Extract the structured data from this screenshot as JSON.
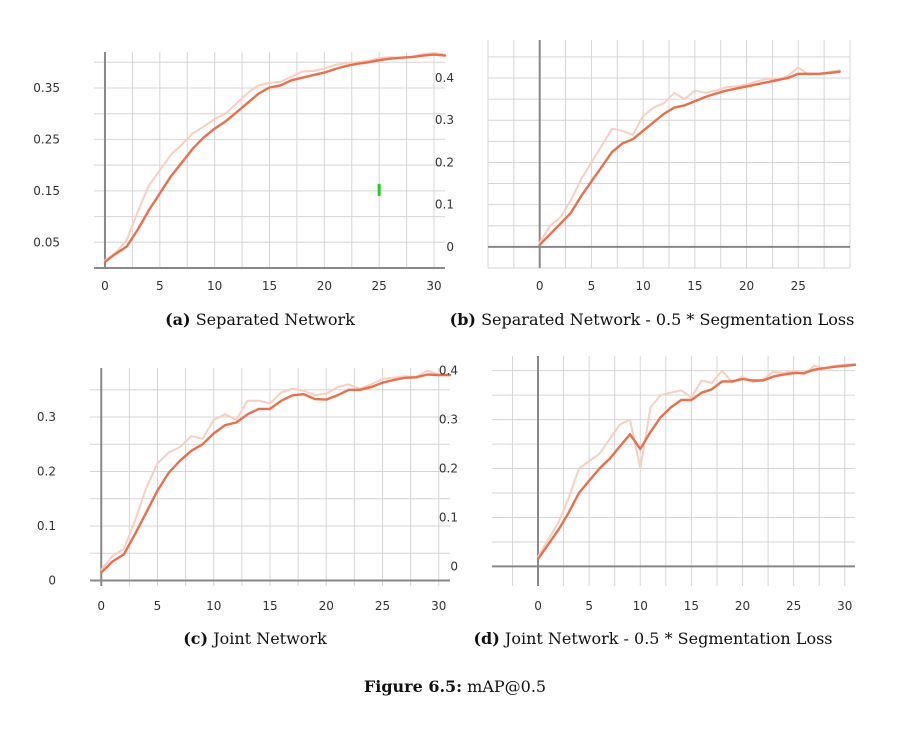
{
  "figure": {
    "label": "Figure 6.5:",
    "text": "mAP@0.5"
  },
  "colors": {
    "smoothed": "#e8704c",
    "raw": "#f8cfc1",
    "grid": "#d6d6d6",
    "axis": "#888888",
    "marker": "#22cc22"
  },
  "chart_data": [
    {
      "type": "line",
      "caption_label": "(a)",
      "caption_text": "Separated Network",
      "xlim": [
        -1,
        31
      ],
      "ylim": [
        0,
        0.42
      ],
      "x_ticks": [
        0,
        5,
        10,
        15,
        20,
        25,
        30
      ],
      "y_ticks": [
        0.05,
        0.15,
        0.25,
        0.35
      ],
      "marker": {
        "x": 25,
        "y": 0.152
      },
      "series": [
        {
          "role": "smoothed",
          "x": [
            0,
            1,
            2,
            3,
            4,
            5,
            6,
            7,
            8,
            9,
            10,
            11,
            12,
            13,
            14,
            15,
            16,
            17,
            18,
            19,
            20,
            21,
            22,
            23,
            24,
            25,
            26,
            27,
            28,
            29,
            30,
            31
          ],
          "values": [
            0.012,
            0.028,
            0.042,
            0.075,
            0.112,
            0.145,
            0.178,
            0.205,
            0.232,
            0.254,
            0.271,
            0.285,
            0.303,
            0.321,
            0.339,
            0.351,
            0.355,
            0.365,
            0.37,
            0.375,
            0.38,
            0.387,
            0.393,
            0.397,
            0.4,
            0.404,
            0.407,
            0.409,
            0.41,
            0.413,
            0.415,
            0.413
          ]
        },
        {
          "role": "raw",
          "x": [
            0,
            1,
            2,
            3,
            4,
            5,
            6,
            7,
            8,
            9,
            10,
            11,
            12,
            13,
            14,
            15,
            16,
            17,
            18,
            19,
            20,
            21,
            22,
            23,
            24,
            25,
            26,
            27,
            28,
            29,
            30,
            31
          ],
          "values": [
            0.015,
            0.03,
            0.055,
            0.11,
            0.16,
            0.19,
            0.22,
            0.24,
            0.262,
            0.275,
            0.29,
            0.3,
            0.32,
            0.34,
            0.355,
            0.36,
            0.362,
            0.372,
            0.382,
            0.383,
            0.388,
            0.395,
            0.398,
            0.4,
            0.403,
            0.408,
            0.41,
            0.409,
            0.411,
            0.416,
            0.418,
            0.415
          ]
        }
      ]
    },
    {
      "type": "line",
      "caption_label": "(b)",
      "caption_text": "Separated Network - 0.5 * Segmentation Loss",
      "xlim": [
        -5,
        30
      ],
      "ylim": [
        -0.05,
        0.49
      ],
      "x_ticks": [
        0,
        5,
        10,
        15,
        20,
        25
      ],
      "y_ticks": [
        0,
        0.1,
        0.2,
        0.3,
        0.4
      ],
      "y_tick_labels": [
        "0",
        "0.1",
        "0.2",
        "0.3",
        "0.4"
      ],
      "series": [
        {
          "role": "smoothed",
          "x": [
            0,
            1,
            2,
            3,
            4,
            5,
            6,
            7,
            8,
            9,
            10,
            11,
            12,
            13,
            14,
            15,
            16,
            17,
            18,
            19,
            20,
            21,
            22,
            23,
            24,
            25,
            26,
            27,
            28,
            29
          ],
          "values": [
            0.005,
            0.03,
            0.055,
            0.08,
            0.12,
            0.155,
            0.19,
            0.225,
            0.245,
            0.255,
            0.275,
            0.295,
            0.315,
            0.33,
            0.335,
            0.345,
            0.355,
            0.363,
            0.37,
            0.375,
            0.38,
            0.385,
            0.39,
            0.395,
            0.4,
            0.41,
            0.41,
            0.41,
            0.412,
            0.415
          ]
        },
        {
          "role": "raw",
          "x": [
            0,
            1,
            2,
            3,
            4,
            5,
            6,
            7,
            8,
            9,
            10,
            11,
            12,
            13,
            14,
            15,
            16,
            17,
            18,
            19,
            20,
            21,
            22,
            23,
            24,
            25,
            26,
            27,
            28,
            29
          ],
          "values": [
            0.01,
            0.05,
            0.07,
            0.11,
            0.16,
            0.2,
            0.24,
            0.28,
            0.275,
            0.265,
            0.31,
            0.33,
            0.34,
            0.365,
            0.35,
            0.37,
            0.365,
            0.37,
            0.378,
            0.38,
            0.385,
            0.392,
            0.398,
            0.397,
            0.405,
            0.425,
            0.408,
            0.41,
            0.415,
            0.418
          ]
        }
      ]
    },
    {
      "type": "line",
      "caption_label": "(c)",
      "caption_text": "Joint Network",
      "xlim": [
        -1,
        31
      ],
      "ylim": [
        -0.01,
        0.39
      ],
      "x_ticks": [
        0,
        5,
        10,
        15,
        20,
        25,
        30
      ],
      "y_ticks": [
        0,
        0.1,
        0.2,
        0.3
      ],
      "y_tick_labels": [
        "0",
        "0.1",
        "0.2",
        "0.3"
      ],
      "series": [
        {
          "role": "smoothed",
          "x": [
            0,
            1,
            2,
            3,
            4,
            5,
            6,
            7,
            8,
            9,
            10,
            11,
            12,
            13,
            14,
            15,
            16,
            17,
            18,
            19,
            20,
            21,
            22,
            23,
            24,
            25,
            26,
            27,
            28,
            29,
            30,
            31
          ],
          "values": [
            0.015,
            0.035,
            0.048,
            0.085,
            0.125,
            0.165,
            0.198,
            0.22,
            0.238,
            0.25,
            0.27,
            0.285,
            0.29,
            0.305,
            0.315,
            0.315,
            0.33,
            0.34,
            0.342,
            0.333,
            0.332,
            0.34,
            0.35,
            0.35,
            0.355,
            0.363,
            0.368,
            0.372,
            0.373,
            0.378,
            0.377,
            0.377
          ]
        },
        {
          "role": "raw",
          "x": [
            0,
            1,
            2,
            3,
            4,
            5,
            6,
            7,
            8,
            9,
            10,
            11,
            12,
            13,
            14,
            15,
            16,
            17,
            18,
            19,
            20,
            21,
            22,
            23,
            24,
            25,
            26,
            27,
            28,
            29,
            30,
            31
          ],
          "values": [
            0.02,
            0.045,
            0.058,
            0.11,
            0.17,
            0.215,
            0.235,
            0.245,
            0.265,
            0.26,
            0.295,
            0.305,
            0.295,
            0.33,
            0.33,
            0.325,
            0.345,
            0.352,
            0.348,
            0.34,
            0.343,
            0.355,
            0.36,
            0.352,
            0.36,
            0.37,
            0.372,
            0.375,
            0.374,
            0.385,
            0.378,
            0.378
          ]
        }
      ]
    },
    {
      "type": "line",
      "caption_label": "(d)",
      "caption_text": "Joint Network - 0.5 * Segmentation Loss",
      "xlim": [
        -4.5,
        31
      ],
      "ylim": [
        -0.04,
        0.43
      ],
      "x_ticks": [
        0,
        5,
        10,
        15,
        20,
        25,
        30
      ],
      "y_ticks": [
        0,
        0.1,
        0.2,
        0.3,
        0.4
      ],
      "y_tick_labels": [
        "0",
        "0.1",
        "0.2",
        "0.3",
        "0.4"
      ],
      "series": [
        {
          "role": "smoothed",
          "x": [
            0,
            1,
            2,
            3,
            4,
            5,
            6,
            7,
            8,
            9,
            10,
            11,
            12,
            13,
            14,
            15,
            16,
            17,
            18,
            19,
            20,
            21,
            22,
            23,
            24,
            25,
            26,
            27,
            28,
            29,
            30,
            31
          ],
          "values": [
            0.015,
            0.045,
            0.075,
            0.11,
            0.15,
            0.175,
            0.2,
            0.22,
            0.245,
            0.27,
            0.24,
            0.275,
            0.305,
            0.325,
            0.34,
            0.34,
            0.355,
            0.362,
            0.378,
            0.378,
            0.383,
            0.38,
            0.38,
            0.388,
            0.392,
            0.395,
            0.395,
            0.402,
            0.405,
            0.408,
            0.41,
            0.412
          ]
        },
        {
          "role": "raw",
          "x": [
            0,
            1,
            2,
            3,
            4,
            5,
            6,
            7,
            8,
            9,
            10,
            11,
            12,
            13,
            14,
            15,
            16,
            17,
            18,
            19,
            20,
            21,
            22,
            23,
            24,
            25,
            26,
            27,
            28,
            29,
            30,
            31
          ],
          "values": [
            0.02,
            0.055,
            0.09,
            0.14,
            0.2,
            0.215,
            0.23,
            0.26,
            0.29,
            0.3,
            0.2,
            0.325,
            0.35,
            0.355,
            0.36,
            0.345,
            0.38,
            0.375,
            0.4,
            0.376,
            0.388,
            0.376,
            0.382,
            0.398,
            0.395,
            0.4,
            0.392,
            0.41,
            0.405,
            0.41,
            0.412,
            0.413
          ]
        }
      ]
    }
  ]
}
